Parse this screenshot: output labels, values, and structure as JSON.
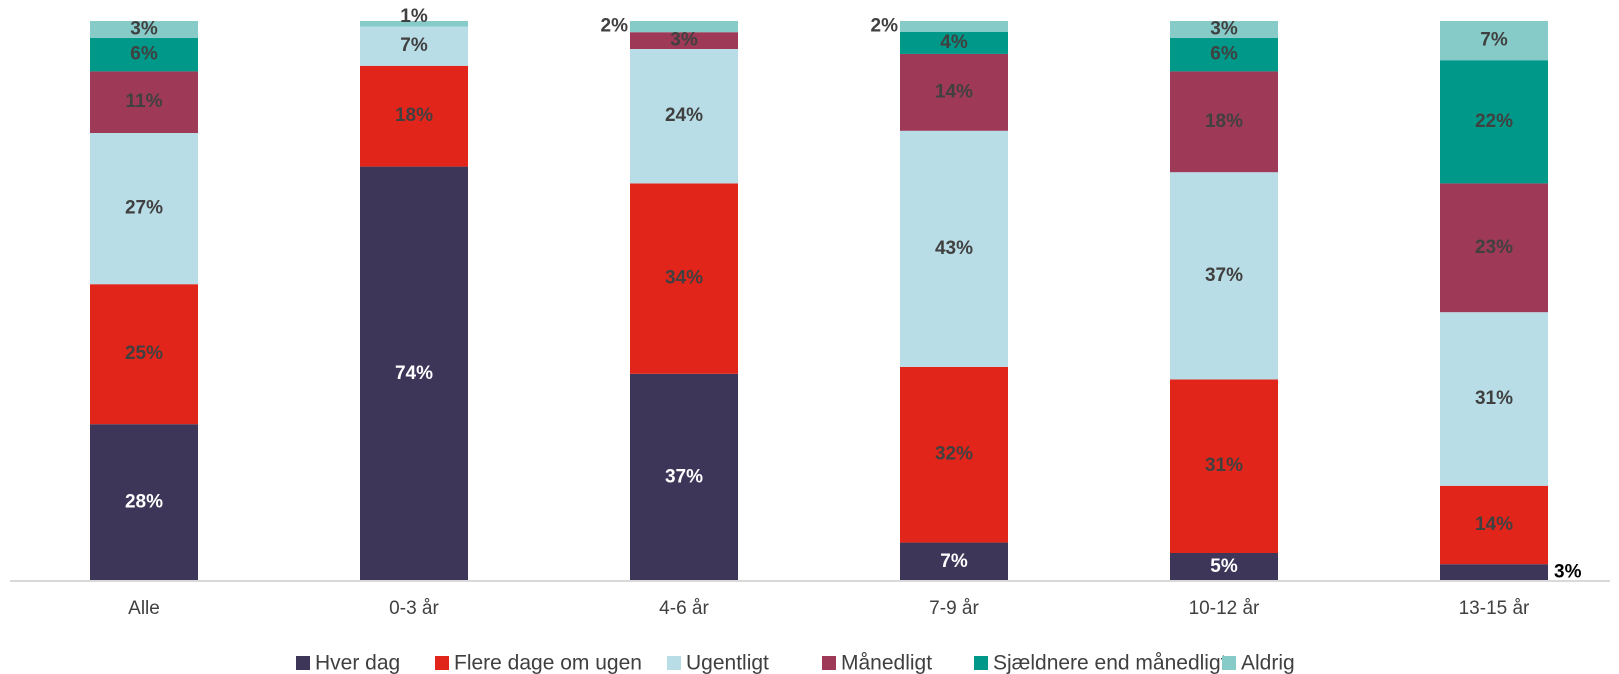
{
  "chart_data": {
    "type": "bar",
    "stacked": true,
    "normalized": true,
    "title": "",
    "xlabel": "",
    "ylabel": "",
    "categories": [
      "Alle",
      "0-3 år",
      "4-6 år",
      "7-9 år",
      "10-12 år",
      "13-15 år"
    ],
    "series": [
      {
        "name": "Hver dag",
        "color": "#3d3659",
        "values": [
          28,
          74,
          37,
          7,
          5,
          3
        ]
      },
      {
        "name": "Flere dage om ugen",
        "color": "#e1251b",
        "values": [
          25,
          18,
          34,
          32,
          31,
          14
        ]
      },
      {
        "name": "Ugentligt",
        "color": "#b9dde6",
        "values": [
          27,
          7,
          24,
          43,
          37,
          31
        ]
      },
      {
        "name": "Månedligt",
        "color": "#9e3a58",
        "values": [
          11,
          0,
          3,
          14,
          18,
          23
        ]
      },
      {
        "name": "Sjældnere end månedligt",
        "color": "#009989",
        "values": [
          6,
          0,
          0,
          4,
          6,
          22
        ]
      },
      {
        "name": "Aldrig",
        "color": "#86cbc8",
        "values": [
          3,
          1,
          2,
          2,
          3,
          7
        ]
      }
    ],
    "data_labels": [
      [
        "28%",
        "25%",
        "27%",
        "11%",
        "6%",
        "3%"
      ],
      [
        "74%",
        "18%",
        "7%",
        "",
        "",
        "1%"
      ],
      [
        "37%",
        "34%",
        "24%",
        "3%",
        "",
        "2%"
      ],
      [
        "7%",
        "32%",
        "43%",
        "14%",
        "4%",
        "2%"
      ],
      [
        "5%",
        "31%",
        "37%",
        "18%",
        "6%",
        "3%"
      ],
      [
        "3%",
        "14%",
        "31%",
        "23%",
        "22%",
        "7%"
      ]
    ],
    "legend_position": "bottom",
    "grid": false
  }
}
